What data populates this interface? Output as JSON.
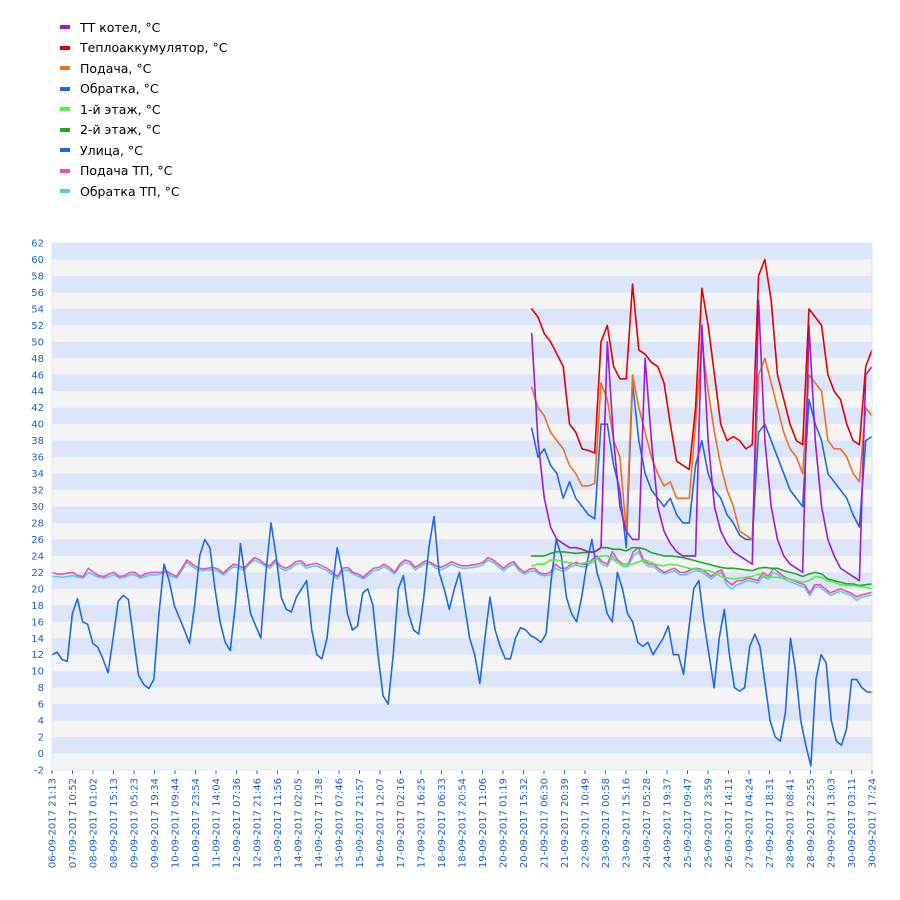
{
  "chart_data": {
    "type": "line",
    "ylim": [
      -2,
      62
    ],
    "yticks": [
      -2,
      0,
      2,
      4,
      6,
      8,
      10,
      12,
      14,
      16,
      18,
      20,
      22,
      24,
      26,
      28,
      30,
      32,
      34,
      36,
      38,
      40,
      42,
      44,
      46,
      48,
      50,
      52,
      54,
      56,
      58,
      60,
      62
    ],
    "xticks": [
      "06-09-2017 21:13",
      "07-09-2017 10:52",
      "08-09-2017 01:02",
      "08-09-2017 15:13",
      "09-09-2017 05:23",
      "09-09-2017 19:34",
      "10-09-2017 09:44",
      "10-09-2017 23:54",
      "11-09-2017 14:04",
      "12-09-2017 07:36",
      "12-09-2017 21:46",
      "13-09-2017 11:56",
      "14-09-2017 02:05",
      "14-09-2017 17:38",
      "15-09-2017 07:46",
      "15-09-2017 21:57",
      "16-09-2017 12:07",
      "17-09-2017 02:16",
      "17-09-2017 16:25",
      "18-09-2017 06:33",
      "18-09-2017 20:54",
      "19-09-2017 11:06",
      "20-09-2017 01:19",
      "20-09-2017 15:32",
      "21-09-2017 06:30",
      "21-09-2017 20:39",
      "22-09-2017 10:49",
      "23-09-2017 00:58",
      "23-09-2017 15:16",
      "24-09-2017 05:28",
      "24-09-2017 19:37",
      "25-09-2017 09:47",
      "25-09-2017 23:59",
      "26-09-2017 14:11",
      "27-09-2017 04:24",
      "27-09-2017 18:31",
      "28-09-2017 08:41",
      "28-09-2017 22:55",
      "29-09-2017 13:03",
      "30-09-2017 03:11",
      "30-09-2017 17:24"
    ],
    "series": [
      {
        "name": "ТТ котел, °С",
        "color": "#9b1bd6",
        "start": 23.4,
        "values": [
          51,
          38,
          31,
          27.5,
          26,
          25.5,
          25,
          25,
          24.8,
          24.5,
          24.5,
          25,
          50,
          38,
          30,
          27,
          26,
          26,
          48,
          38,
          30,
          27,
          25.5,
          24.5,
          24,
          24,
          24,
          52,
          38,
          30,
          27,
          25.5,
          24.5,
          24,
          23.5,
          23,
          55,
          38,
          30,
          26,
          24,
          23,
          22.5,
          22,
          52,
          38,
          30,
          26,
          24,
          22.5,
          22,
          21.5,
          21,
          46,
          47
        ]
      },
      {
        "name": "Теплоаккумулятор, °С",
        "color": "#e00000",
        "start": 23.4,
        "values": [
          54,
          53,
          51,
          50,
          48.5,
          47,
          40,
          39,
          37,
          36.8,
          36.5,
          50,
          52,
          47,
          45.5,
          45.5,
          57,
          49,
          48.5,
          47.5,
          47,
          45,
          40,
          35.5,
          35,
          34.5,
          42,
          56.5,
          52,
          46,
          40,
          38,
          38.5,
          38,
          37,
          37.5,
          58,
          60,
          55,
          46,
          43,
          40,
          38,
          37.5,
          54,
          53,
          52,
          46,
          44,
          43,
          40,
          38,
          37.5,
          47,
          49
        ]
      },
      {
        "name": "Подача, °С",
        "color": "#f07020",
        "start": 23.4,
        "values": [
          44.5,
          42,
          41,
          39,
          38,
          37,
          35,
          34,
          32.5,
          32.5,
          32.8,
          45,
          43,
          38,
          36,
          27,
          46,
          42,
          39,
          36,
          34,
          32.5,
          33,
          31,
          31,
          31,
          40,
          50,
          44,
          39,
          35,
          32,
          30,
          27,
          26.5,
          26,
          46,
          48,
          45,
          42,
          39,
          37,
          36,
          34,
          46,
          45,
          44,
          38,
          37,
          37,
          36,
          34,
          33,
          42,
          41
        ]
      },
      {
        "name": "Обратка, °С",
        "color": "#1e6ae0",
        "start": 23.4,
        "values": [
          39.5,
          36,
          37,
          35,
          34,
          31,
          33,
          31,
          30,
          29,
          28.5,
          40,
          40,
          35,
          32,
          25,
          45,
          38,
          34,
          32,
          31,
          30,
          31,
          29,
          28,
          28,
          35,
          38,
          34,
          32,
          31,
          29,
          28,
          26.5,
          26,
          26,
          39,
          40,
          38,
          36,
          34,
          32,
          31,
          30,
          43,
          40,
          38,
          34,
          33,
          32,
          31,
          29,
          27.5,
          38,
          38.5
        ]
      },
      {
        "name": "1-й этаж, °С",
        "color": "#55ee44",
        "start": 23.4,
        "values": [
          22.8,
          23,
          23,
          23.5,
          23.5,
          23.3,
          23.2,
          23,
          23.1,
          23.2,
          23.5,
          24,
          24,
          23.5,
          23,
          22.9,
          23,
          23.3,
          23.5,
          23.2,
          22.9,
          22.8,
          23,
          22.9,
          22.7,
          22.5,
          22.4,
          22.3,
          22.2,
          22,
          21.5,
          21.3,
          21.2,
          21.3,
          21.4,
          21.5,
          21.8,
          21.5,
          21.4,
          21.4,
          21.3,
          21.2,
          21,
          20.8,
          21,
          21.5,
          21.4,
          21,
          20.8,
          20.5,
          20.4,
          20.4,
          20.3,
          20.2,
          20
        ]
      },
      {
        "name": "2-й этаж, °С",
        "color": "#1eaa1e",
        "start": 23.4,
        "values": [
          24,
          24,
          24,
          24.3,
          24.5,
          24.5,
          24.4,
          24.3,
          24.4,
          24.4,
          24.5,
          25,
          25,
          24.8,
          24.8,
          24.6,
          25,
          25,
          24.8,
          24.4,
          24.2,
          24,
          24,
          23.9,
          23.8,
          23.6,
          23.4,
          23.2,
          23,
          22.8,
          22.6,
          22.5,
          22.5,
          22.4,
          22.3,
          22.2,
          22.5,
          22.6,
          22.5,
          22.5,
          22.2,
          22,
          21.8,
          21.5,
          21.8,
          22,
          21.8,
          21.2,
          21,
          20.8,
          20.6,
          20.6,
          20.4,
          20.5,
          20.6
        ]
      },
      {
        "name": "Улица, °С",
        "color": "#1e6ae0",
        "start": 0,
        "values": [
          12,
          12.3,
          11.4,
          11.2,
          17,
          18.8,
          16,
          15.7,
          13.4,
          12.9,
          11.5,
          9.8,
          14,
          18.5,
          19.2,
          18.7,
          14,
          9.5,
          8.4,
          7.9,
          9,
          17,
          23,
          21,
          18,
          16.5,
          15,
          13.4,
          18,
          24,
          26,
          25,
          20,
          16,
          13.5,
          12.5,
          18,
          25.5,
          21,
          17,
          15.5,
          14,
          22,
          28,
          24,
          19,
          17.5,
          17.2,
          19,
          20,
          21,
          15,
          12,
          11.5,
          14,
          20,
          25,
          22,
          17,
          15,
          15.5,
          19.5,
          20,
          18,
          12,
          7,
          6,
          12,
          20,
          21.6,
          17,
          15,
          14.5,
          19,
          25,
          28.8,
          22,
          20,
          17.5,
          20,
          22,
          18,
          14,
          12,
          8.5,
          14,
          19,
          15,
          13,
          11.5,
          11.5,
          14,
          15.3,
          15,
          14.3,
          14,
          13.5,
          14.5,
          21,
          26,
          24,
          19,
          17,
          16,
          19,
          23,
          26,
          22,
          20,
          17,
          16,
          22,
          20,
          17,
          16,
          13.5,
          13,
          13.5,
          12,
          13,
          14,
          15.5,
          12,
          12,
          9.6,
          15,
          20,
          21,
          16,
          12,
          8,
          14,
          17.5,
          12,
          8,
          7.6,
          8,
          13,
          14.5,
          13,
          8.5,
          4,
          2,
          1.5,
          5,
          14,
          10,
          4,
          1,
          -1.5,
          9,
          12,
          11,
          4,
          1.5,
          1,
          3,
          9,
          9,
          8,
          7.5,
          7.4
        ]
      },
      {
        "name": "Подача ТП, °С",
        "color": "#ee4fae",
        "start": 0,
        "values": [
          22,
          21.8,
          21.8,
          21.9,
          22,
          21.6,
          21.5,
          22.5,
          22,
          21.6,
          21.5,
          21.8,
          22,
          21.5,
          21.6,
          22,
          22,
          21.5,
          21.8,
          22,
          22,
          22,
          22.2,
          21.8,
          21.5,
          22.5,
          23.5,
          23,
          22.6,
          22.4,
          22.5,
          22.6,
          22.4,
          21.9,
          22.5,
          23,
          22.8,
          22.5,
          23.2,
          23.8,
          23.5,
          23,
          22.8,
          23.5,
          22.8,
          22.5,
          22.8,
          23.3,
          23.4,
          22.8,
          23,
          23.1,
          22.8,
          22.5,
          22,
          21.5,
          22.5,
          22.6,
          22,
          21.8,
          21.4,
          22,
          22.5,
          22.6,
          23,
          22.6,
          22,
          23,
          23.5,
          23.3,
          22.6,
          23,
          23.4,
          23.2,
          22.8,
          22.6,
          22.9,
          23.3,
          23,
          22.8,
          22.8,
          22.9,
          23,
          23.2,
          23.8,
          23.5,
          23,
          22.5,
          23,
          23.3,
          22.5,
          22,
          22.4,
          22.5,
          21.9,
          21.8,
          22,
          23,
          22.5,
          22.5,
          23,
          23.2,
          23,
          23,
          23.5,
          24,
          23.3,
          23,
          24.5,
          23.5,
          23,
          23,
          24.5,
          25,
          23.5,
          23,
          23,
          22.4,
          22,
          22.3,
          22.5,
          22,
          22,
          22.3,
          22.5,
          22.4,
          22,
          21.5,
          22,
          22.3,
          21,
          20.5,
          21,
          21,
          21.3,
          21.2,
          21,
          22,
          21.5,
          22.5,
          22,
          21.5,
          21.2,
          21,
          20.7,
          20.5,
          19.5,
          20.5,
          20.5,
          20,
          19.5,
          19.8,
          20,
          19.7,
          19.5,
          19,
          19.3,
          19.4,
          19.6
        ]
      },
      {
        "name": "Обратка ТП, °С",
        "color": "#5bc8f2",
        "start": 0,
        "values": [
          21.5,
          21.5,
          21.4,
          21.5,
          21.6,
          21.4,
          21.3,
          22,
          21.7,
          21.4,
          21.3,
          21.5,
          21.7,
          21.3,
          21.4,
          21.7,
          21.7,
          21.3,
          21.5,
          21.7,
          21.7,
          21.8,
          22,
          21.5,
          21.3,
          22.2,
          23.2,
          22.7,
          22.3,
          22.2,
          22.3,
          22.3,
          22.1,
          21.7,
          22.2,
          22.7,
          22.5,
          22.2,
          23,
          23.5,
          23.2,
          22.8,
          22.5,
          23.2,
          22.5,
          22.2,
          22.5,
          23,
          23.1,
          22.5,
          22.7,
          22.8,
          22.5,
          22.2,
          21.7,
          21.2,
          22.2,
          22.3,
          21.8,
          21.5,
          21.2,
          21.7,
          22.2,
          22.3,
          22.7,
          22.3,
          21.8,
          22.7,
          23.2,
          23,
          22.3,
          22.7,
          23.1,
          23,
          22.5,
          22.3,
          22.6,
          23,
          22.7,
          22.5,
          22.5,
          22.6,
          22.7,
          22.9,
          23.5,
          23.2,
          22.7,
          22.2,
          22.7,
          23,
          22.2,
          21.8,
          22.1,
          22.2,
          21.7,
          21.6,
          21.7,
          22.5,
          22.2,
          22.2,
          22.7,
          22.9,
          22.7,
          22.7,
          23.2,
          23.7,
          23,
          22.7,
          24,
          23.2,
          22.7,
          22.7,
          24,
          24.5,
          23.2,
          22.7,
          22.7,
          22.1,
          21.8,
          22,
          22.2,
          21.7,
          21.7,
          22,
          22.2,
          22.1,
          21.7,
          21.2,
          21.7,
          22,
          20.5,
          20,
          20.5,
          20.7,
          21,
          20.9,
          20.7,
          21.5,
          21.2,
          22,
          21.7,
          21.2,
          20.9,
          20.7,
          20.4,
          20.2,
          19.2,
          20.2,
          20.2,
          19.7,
          19.2,
          19.5,
          19.7,
          19.4,
          19.2,
          18.6,
          19,
          19.1,
          19.3
        ]
      }
    ]
  }
}
